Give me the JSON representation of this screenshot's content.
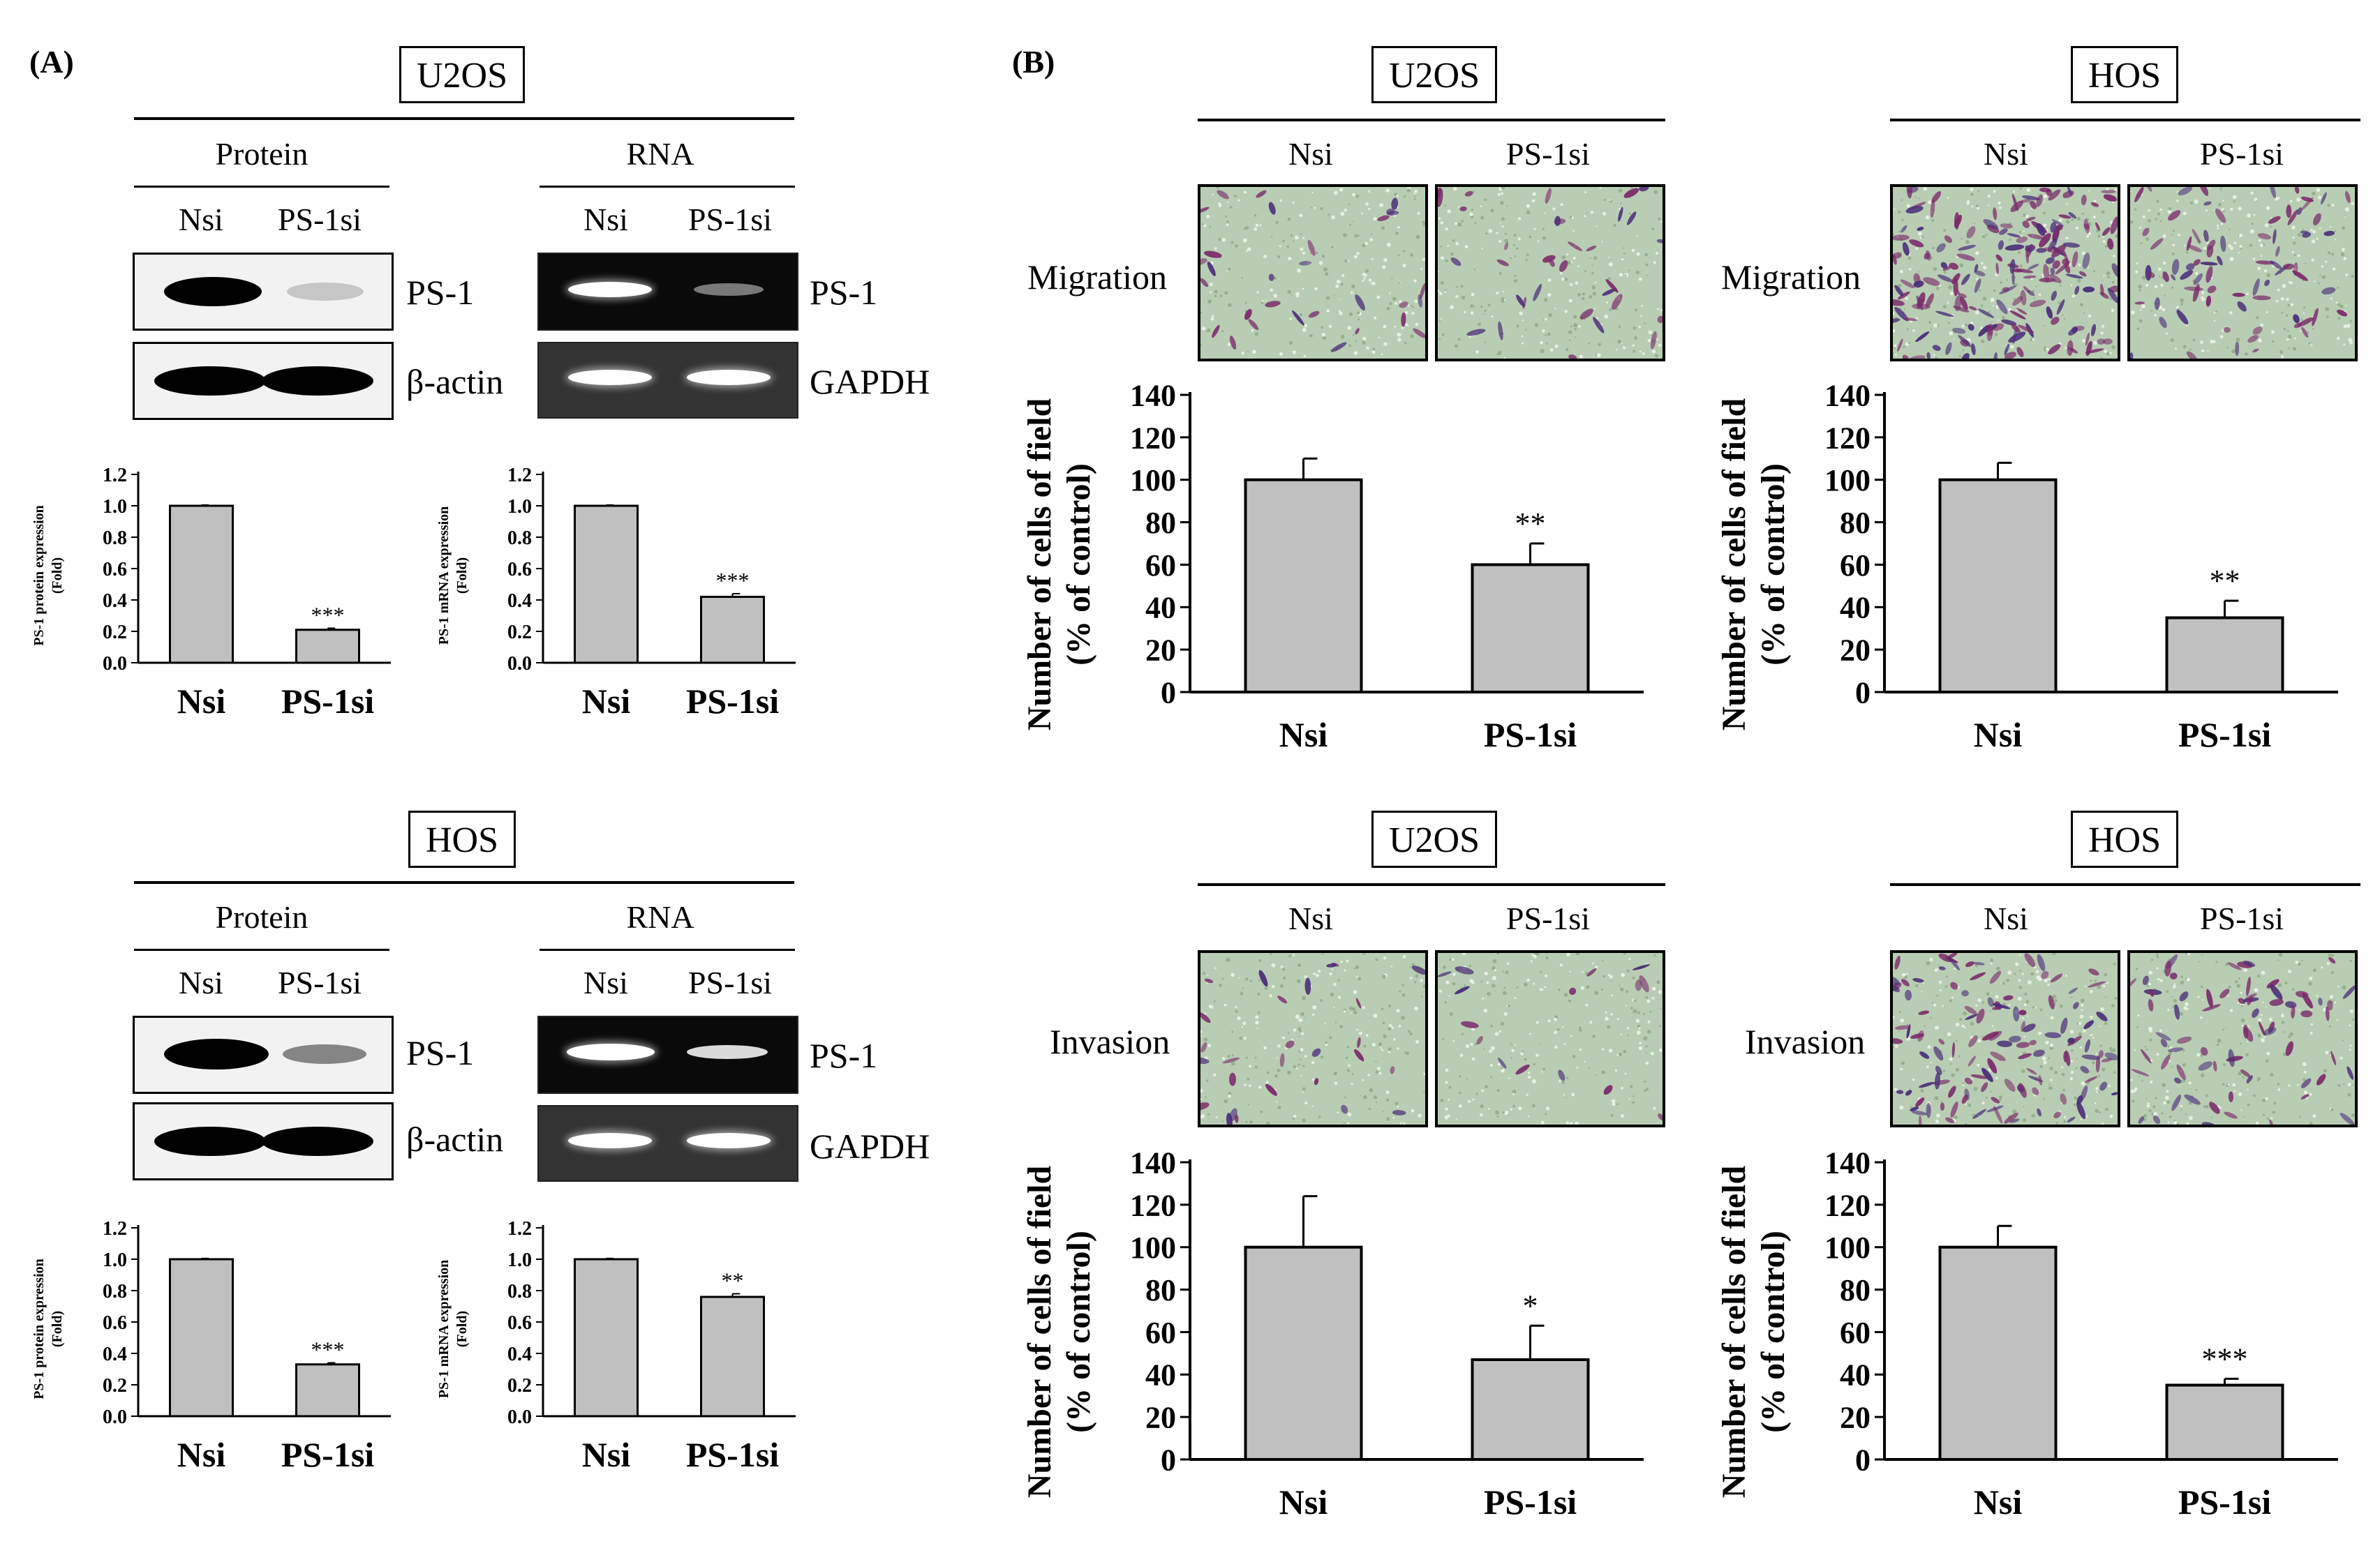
{
  "panel_a": {
    "letter": "(A)",
    "groups": [
      {
        "cell_line": "U2OS",
        "protein_header": "Protein",
        "rna_header": "RNA",
        "lanes": [
          "Nsi",
          "PS-1si"
        ],
        "protein_rows": [
          "PS-1",
          "β-actin"
        ],
        "rna_rows": [
          "PS-1",
          "GAPDH"
        ],
        "band_intensity": {
          "protein_ps1": [
            1.0,
            0.21
          ],
          "rna_ps1": [
            1.0,
            0.42
          ]
        }
      },
      {
        "cell_line": "HOS",
        "protein_header": "Protein",
        "rna_header": "RNA",
        "lanes": [
          "Nsi",
          "PS-1si"
        ],
        "protein_rows": [
          "PS-1",
          "β-actin"
        ],
        "rna_rows": [
          "PS-1",
          "GAPDH"
        ],
        "band_intensity": {
          "protein_ps1": [
            1.0,
            0.33
          ],
          "rna_ps1": [
            1.0,
            0.76
          ]
        }
      }
    ]
  },
  "panel_b": {
    "letter": "(B)",
    "assays": [
      "Migration",
      "Invasion"
    ],
    "lanes": [
      "Nsi",
      "PS-1si"
    ],
    "cell_lines": [
      "U2OS",
      "HOS"
    ]
  },
  "chart_data": [
    {
      "id": "a-u2os-protein",
      "type": "bar",
      "categories": [
        "Nsi",
        "PS-1si"
      ],
      "values": [
        1.0,
        0.21
      ],
      "errors": [
        0.005,
        0.01
      ],
      "significance": [
        "",
        "***"
      ],
      "ylabel": "PS-1 protein expression\n(Fold)",
      "ylim": [
        0,
        1.2
      ],
      "yticks": [
        "0.0",
        "0.2",
        "0.4",
        "0.6",
        "0.8",
        "1.0",
        "1.2"
      ],
      "tick_values": [
        0,
        0.2,
        0.4,
        0.6,
        0.8,
        1.0,
        1.2
      ]
    },
    {
      "id": "a-u2os-mrna",
      "type": "bar",
      "categories": [
        "Nsi",
        "PS-1si"
      ],
      "values": [
        1.0,
        0.42
      ],
      "errors": [
        0.005,
        0.02
      ],
      "significance": [
        "",
        "***"
      ],
      "ylabel": "PS-1 mRNA expression\n(Fold)",
      "ylim": [
        0,
        1.2
      ],
      "yticks": [
        "0.0",
        "0.2",
        "0.4",
        "0.6",
        "0.8",
        "1.0",
        "1.2"
      ],
      "tick_values": [
        0,
        0.2,
        0.4,
        0.6,
        0.8,
        1.0,
        1.2
      ]
    },
    {
      "id": "a-hos-protein",
      "type": "bar",
      "categories": [
        "Nsi",
        "PS-1si"
      ],
      "values": [
        1.0,
        0.33
      ],
      "errors": [
        0.005,
        0.01
      ],
      "significance": [
        "",
        "***"
      ],
      "ylabel": "PS-1 protein expression\n(Fold)",
      "ylim": [
        0,
        1.2
      ],
      "yticks": [
        "0.0",
        "0.2",
        "0.4",
        "0.6",
        "0.8",
        "1.0",
        "1.2"
      ],
      "tick_values": [
        0,
        0.2,
        0.4,
        0.6,
        0.8,
        1.0,
        1.2
      ]
    },
    {
      "id": "a-hos-mrna",
      "type": "bar",
      "categories": [
        "Nsi",
        "PS-1si"
      ],
      "values": [
        1.0,
        0.76
      ],
      "errors": [
        0.005,
        0.02
      ],
      "significance": [
        "",
        "**"
      ],
      "ylabel": "PS-1 mRNA expression\n(Fold)",
      "ylim": [
        0,
        1.2
      ],
      "yticks": [
        "0.0",
        "0.2",
        "0.4",
        "0.6",
        "0.8",
        "1.0",
        "1.2"
      ],
      "tick_values": [
        0,
        0.2,
        0.4,
        0.6,
        0.8,
        1.0,
        1.2
      ]
    },
    {
      "id": "b-u2os-migration",
      "type": "bar",
      "categories": [
        "Nsi",
        "PS-1si"
      ],
      "values": [
        100,
        60
      ],
      "errors": [
        10,
        10
      ],
      "significance": [
        "",
        "**"
      ],
      "ylabel": "Number of cells of field\n(% of control)",
      "ylim": [
        0,
        140
      ],
      "yticks": [
        "0",
        "20",
        "40",
        "60",
        "80",
        "100",
        "120",
        "140"
      ],
      "tick_values": [
        0,
        20,
        40,
        60,
        80,
        100,
        120,
        140
      ]
    },
    {
      "id": "b-hos-migration",
      "type": "bar",
      "categories": [
        "Nsi",
        "PS-1si"
      ],
      "values": [
        100,
        35
      ],
      "errors": [
        8,
        8
      ],
      "significance": [
        "",
        "**"
      ],
      "ylabel": "Number of cells of field\n(% of control)",
      "ylim": [
        0,
        140
      ],
      "yticks": [
        "0",
        "20",
        "40",
        "60",
        "80",
        "100",
        "120",
        "140"
      ],
      "tick_values": [
        0,
        20,
        40,
        60,
        80,
        100,
        120,
        140
      ]
    },
    {
      "id": "b-u2os-invasion",
      "type": "bar",
      "categories": [
        "Nsi",
        "PS-1si"
      ],
      "values": [
        100,
        47
      ],
      "errors": [
        24,
        16
      ],
      "significance": [
        "",
        "*"
      ],
      "ylabel": "Number of cells of field\n(% of control)",
      "ylim": [
        0,
        140
      ],
      "yticks": [
        "0",
        "20",
        "40",
        "60",
        "80",
        "100",
        "120",
        "140"
      ],
      "tick_values": [
        0,
        20,
        40,
        60,
        80,
        100,
        120,
        140
      ]
    },
    {
      "id": "b-hos-invasion",
      "type": "bar",
      "categories": [
        "Nsi",
        "PS-1si"
      ],
      "values": [
        100,
        35
      ],
      "errors": [
        10,
        3
      ],
      "significance": [
        "",
        "***"
      ],
      "ylabel": "Number of cells of field\n(% of control)",
      "ylim": [
        0,
        140
      ],
      "yticks": [
        "0",
        "20",
        "40",
        "60",
        "80",
        "100",
        "120",
        "140"
      ],
      "tick_values": [
        0,
        20,
        40,
        60,
        80,
        100,
        120,
        140
      ]
    }
  ],
  "colors": {
    "bar_fill": "#c0c0c0",
    "photo_bg": "#b9cdb4",
    "cell_stain": "#7a2a6a",
    "nucleus": "#4a2d78",
    "gel_band": "#ffffff"
  }
}
